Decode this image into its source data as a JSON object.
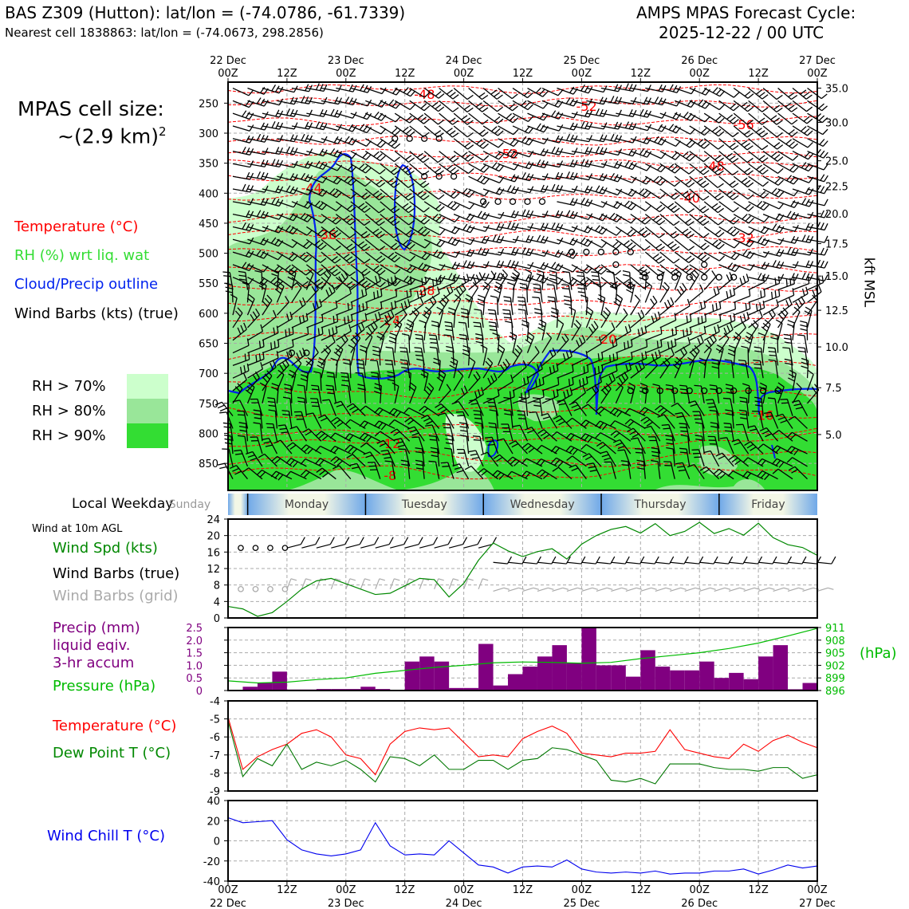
{
  "header": {
    "title_left": "BAS Z309 (Hutton): lat/lon = (-74.0786, -61.7339)",
    "subtitle_left": "Nearest cell 1838863: lat/lon = (-74.0673, 298.2856)",
    "title_right_1": "AMPS MPAS Forecast Cycle:",
    "title_right_2": "2025-12-22 / 00 UTC"
  },
  "cell_size": {
    "line1": "MPAS cell size:",
    "line2": "~(2.9 km)",
    "sup": "2"
  },
  "legend": {
    "temperature": "Temperature (°C)",
    "rh": "RH (%) wrt liq. wat",
    "cloud": "Cloud/Precip outline",
    "barbs": "Wind Barbs (kts) (true)",
    "rh70": "RH > 70%",
    "rh80": "RH > 80%",
    "rh90": "RH > 90%"
  },
  "colors": {
    "temp": "#ff0000",
    "rh70": "#ccffcc",
    "rh80": "#99e699",
    "rh90": "#33dd33",
    "cloud": "#0022ee",
    "pressure": "#00bb00",
    "precip": "#800080",
    "dewpoint": "#007700",
    "windchill": "#0000ee",
    "grid": "#aaaaaa"
  },
  "chart_data": [
    {
      "type": "heatmap",
      "title": "Vertical profile",
      "x_top_labels": [
        {
          "top": "22 Dec",
          "bot": "00Z"
        },
        {
          "top": "",
          "bot": "12Z"
        },
        {
          "top": "23 Dec",
          "bot": "00Z"
        },
        {
          "top": "",
          "bot": "12Z"
        },
        {
          "top": "24 Dec",
          "bot": "00Z"
        },
        {
          "top": "",
          "bot": "12Z"
        },
        {
          "top": "25 Dec",
          "bot": "00Z"
        },
        {
          "top": "",
          "bot": "12Z"
        },
        {
          "top": "26 Dec",
          "bot": "00Z"
        },
        {
          "top": "",
          "bot": "12Z"
        },
        {
          "top": "27 Dec",
          "bot": "00Z"
        }
      ],
      "x_range_hours": [
        0,
        120
      ],
      "pressure_ticks": [
        "250",
        "300",
        "350",
        "400",
        "450",
        "500",
        "550",
        "600",
        "650",
        "700",
        "750",
        "800",
        "850"
      ],
      "pressure_range": [
        215,
        895
      ],
      "kft_ticks": [
        "35.0",
        "30.0",
        "25.0",
        "22.5",
        "20.0",
        "17.5",
        "15.0",
        "12.5",
        "10.0",
        "7.5",
        "5.0"
      ],
      "kft_pressure": [
        225,
        282,
        346,
        388,
        434,
        484,
        538,
        595,
        656,
        724,
        802
      ],
      "right_label": "kft MSL",
      "temp_labels": [
        {
          "text": "-48",
          "h": 40,
          "p": 236
        },
        {
          "text": "-52",
          "h": 73,
          "p": 256
        },
        {
          "text": "-56",
          "h": 105,
          "p": 287
        },
        {
          "text": "-52",
          "h": 57,
          "p": 335
        },
        {
          "text": "-48",
          "h": 99,
          "p": 356
        },
        {
          "text": "-44",
          "h": 17,
          "p": 392
        },
        {
          "text": "-40",
          "h": 94,
          "p": 409
        },
        {
          "text": "-36",
          "h": 20,
          "p": 470
        },
        {
          "text": "-32",
          "h": 105,
          "p": 475
        },
        {
          "text": "-28",
          "h": 40,
          "p": 563
        },
        {
          "text": "-24",
          "h": 33,
          "p": 613
        },
        {
          "text": "-20",
          "h": 77,
          "p": 644
        },
        {
          "text": "-16",
          "h": 109,
          "p": 771
        },
        {
          "text": "-12",
          "h": 33,
          "p": 818
        },
        {
          "text": "-8",
          "h": 33,
          "p": 871
        }
      ]
    },
    {
      "type": "line",
      "title": "Wind at 10m AGL",
      "ylabel_1": "Wind Spd (kts)",
      "ylabel_2": "Wind Barbs (true)",
      "ylabel_3": "Wind Barbs (grid)",
      "yticks": [
        "0",
        "4",
        "8",
        "12",
        "16",
        "20",
        "24"
      ],
      "ylim": [
        0,
        24
      ],
      "x_hours": [
        0,
        3,
        6,
        9,
        12,
        15,
        18,
        21,
        24,
        27,
        30,
        33,
        36,
        39,
        42,
        45,
        48,
        51,
        54,
        57,
        60,
        63,
        66,
        69,
        72,
        75,
        78,
        81,
        84,
        87,
        90,
        93,
        96,
        99,
        102,
        105,
        108,
        111,
        114,
        117,
        120
      ],
      "values": [
        2.8,
        2.2,
        0.4,
        1.3,
        4,
        7,
        9,
        9.6,
        8.3,
        7,
        5.7,
        6,
        7.8,
        9.6,
        9.3,
        5.1,
        8.4,
        14,
        18.2,
        16.3,
        14.9,
        16.1,
        16.8,
        14.3,
        17.9,
        20,
        21.5,
        22.2,
        20.6,
        22.9,
        20,
        21,
        23.2,
        20.5,
        21.7,
        20.1,
        23,
        19.5,
        17.8,
        17.1,
        15.2
      ]
    },
    {
      "type": "bar",
      "title": "Precip and Pressure",
      "ylabel_1": "Precip (mm)",
      "ylabel_2": "liquid eqiv.",
      "ylabel_3": "3-hr accum",
      "ylabel_4": "Pressure (hPa)",
      "right_unit": "(hPa)",
      "yticks": [
        "0",
        "0.5",
        "1.0",
        "1.5",
        "2.0",
        "2.5"
      ],
      "ylim": [
        0,
        2.5
      ],
      "bar_hours": [
        0,
        3,
        6,
        9,
        12,
        15,
        18,
        21,
        24,
        27,
        30,
        33,
        36,
        39,
        42,
        45,
        48,
        51,
        54,
        57,
        60,
        63,
        66,
        69,
        72,
        75,
        78,
        81,
        84,
        87,
        90,
        93,
        96,
        99,
        102,
        105,
        108,
        111,
        114,
        117
      ],
      "values": [
        0,
        0.15,
        0.3,
        0.75,
        0.04,
        0.04,
        0.06,
        0.06,
        0.06,
        0.15,
        0.06,
        0,
        1.15,
        1.35,
        1.15,
        0.1,
        0.1,
        1.85,
        0.2,
        0.65,
        0.95,
        1.35,
        1.8,
        1.1,
        2.5,
        1.0,
        1.0,
        0.55,
        1.6,
        0.95,
        0.8,
        0.8,
        1.15,
        0.5,
        0.7,
        0.45,
        1.35,
        1.8,
        0.05,
        0.3
      ],
      "p_ticks": [
        "896",
        "899",
        "902",
        "905",
        "908",
        "911"
      ],
      "p_range": [
        896,
        911
      ],
      "pressure_hours": [
        0,
        6,
        12,
        18,
        24,
        30,
        36,
        42,
        48,
        54,
        60,
        66,
        72,
        78,
        84,
        90,
        96,
        102,
        108,
        114,
        120
      ],
      "pressure_values": [
        898.3,
        897.8,
        898.0,
        898.6,
        899.0,
        900.1,
        900.8,
        901.5,
        902.0,
        902.6,
        902.8,
        902.7,
        902.5,
        902.7,
        903.6,
        904.3,
        905.0,
        906.0,
        907.3,
        909.0,
        910.8
      ]
    },
    {
      "type": "line",
      "title": "Temperature and Dew Point",
      "ylabel_1": "Temperature (°C)",
      "ylabel_2": "Dew Point T (°C)",
      "yticks": [
        "-9",
        "-8",
        "-7",
        "-6",
        "-5",
        "-4"
      ],
      "ylim": [
        -9,
        -4
      ],
      "x_hours": [
        0,
        3,
        6,
        9,
        12,
        15,
        18,
        21,
        24,
        27,
        30,
        33,
        36,
        39,
        42,
        45,
        48,
        51,
        54,
        57,
        60,
        63,
        66,
        69,
        72,
        75,
        78,
        81,
        84,
        87,
        90,
        93,
        96,
        99,
        102,
        105,
        108,
        111,
        114,
        117,
        120
      ],
      "temperature": [
        -4.9,
        -7.8,
        -7.1,
        -6.7,
        -6.4,
        -5.8,
        -5.6,
        -6.0,
        -7.0,
        -7.2,
        -8.1,
        -6.4,
        -5.7,
        -5.5,
        -5.6,
        -5.5,
        -6.3,
        -7.1,
        -7.0,
        -7.1,
        -6.1,
        -5.7,
        -5.4,
        -5.8,
        -6.9,
        -7.0,
        -7.1,
        -6.9,
        -6.9,
        -6.8,
        -5.6,
        -6.7,
        -6.9,
        -7.1,
        -7.2,
        -6.4,
        -6.8,
        -6.2,
        -5.9,
        -6.3,
        -6.6
      ],
      "dewpoint": [
        -5.1,
        -8.2,
        -7.2,
        -7.6,
        -6.4,
        -7.8,
        -7.4,
        -7.6,
        -7.3,
        -7.8,
        -8.5,
        -7.1,
        -7.2,
        -7.6,
        -7.0,
        -7.8,
        -7.8,
        -7.3,
        -7.3,
        -7.8,
        -7.3,
        -7.2,
        -6.6,
        -6.7,
        -7.0,
        -7.3,
        -8.4,
        -8.5,
        -8.3,
        -8.6,
        -7.5,
        -7.5,
        -7.5,
        -7.7,
        -7.8,
        -7.8,
        -7.9,
        -7.7,
        -7.7,
        -8.3,
        -8.1
      ]
    },
    {
      "type": "line",
      "title": "Wind Chill",
      "ylabel_1": "Wind Chill T (°C)",
      "yticks": [
        "-40",
        "-20",
        "0",
        "20",
        "40"
      ],
      "ylim": [
        -40,
        40
      ],
      "x_top_labels": [
        {
          "top": "00Z",
          "bot": "22 Dec"
        },
        {
          "top": "12Z",
          "bot": ""
        },
        {
          "top": "00Z",
          "bot": "23 Dec"
        },
        {
          "top": "12Z",
          "bot": ""
        },
        {
          "top": "00Z",
          "bot": "24 Dec"
        },
        {
          "top": "12Z",
          "bot": ""
        },
        {
          "top": "00Z",
          "bot": "25 Dec"
        },
        {
          "top": "12Z",
          "bot": ""
        },
        {
          "top": "00Z",
          "bot": "26 Dec"
        },
        {
          "top": "12Z",
          "bot": ""
        },
        {
          "top": "00Z",
          "bot": "27 Dec"
        }
      ],
      "x_hours": [
        0,
        3,
        6,
        9,
        12,
        15,
        18,
        21,
        24,
        27,
        30,
        33,
        36,
        39,
        42,
        45,
        48,
        51,
        54,
        57,
        60,
        63,
        66,
        69,
        72,
        75,
        78,
        81,
        84,
        87,
        90,
        93,
        96,
        99,
        102,
        105,
        108,
        111,
        114,
        117,
        120
      ],
      "values": [
        23,
        18,
        19,
        20,
        1,
        -9,
        -13,
        -15,
        -13,
        -9,
        18,
        -5,
        -14,
        -13,
        -14,
        0,
        -12,
        -24,
        -26,
        -32,
        -26,
        -25,
        -26,
        -19,
        -28,
        -31,
        -32,
        -31,
        -32,
        -30,
        -33,
        -32,
        -32,
        -30,
        -30,
        -28,
        -33,
        -29,
        -24,
        -27,
        -25
      ]
    }
  ],
  "weekday_bar": {
    "label": "Local Weekday",
    "days": [
      {
        "name": "Sunday",
        "start": -9,
        "end": 4
      },
      {
        "name": "Monday",
        "start": 4,
        "end": 28
      },
      {
        "name": "Tuesday",
        "start": 28,
        "end": 52
      },
      {
        "name": "Wednesday",
        "start": 52,
        "end": 76
      },
      {
        "name": "Thursday",
        "start": 76,
        "end": 100
      },
      {
        "name": "Friday",
        "start": 100,
        "end": 120
      }
    ]
  }
}
